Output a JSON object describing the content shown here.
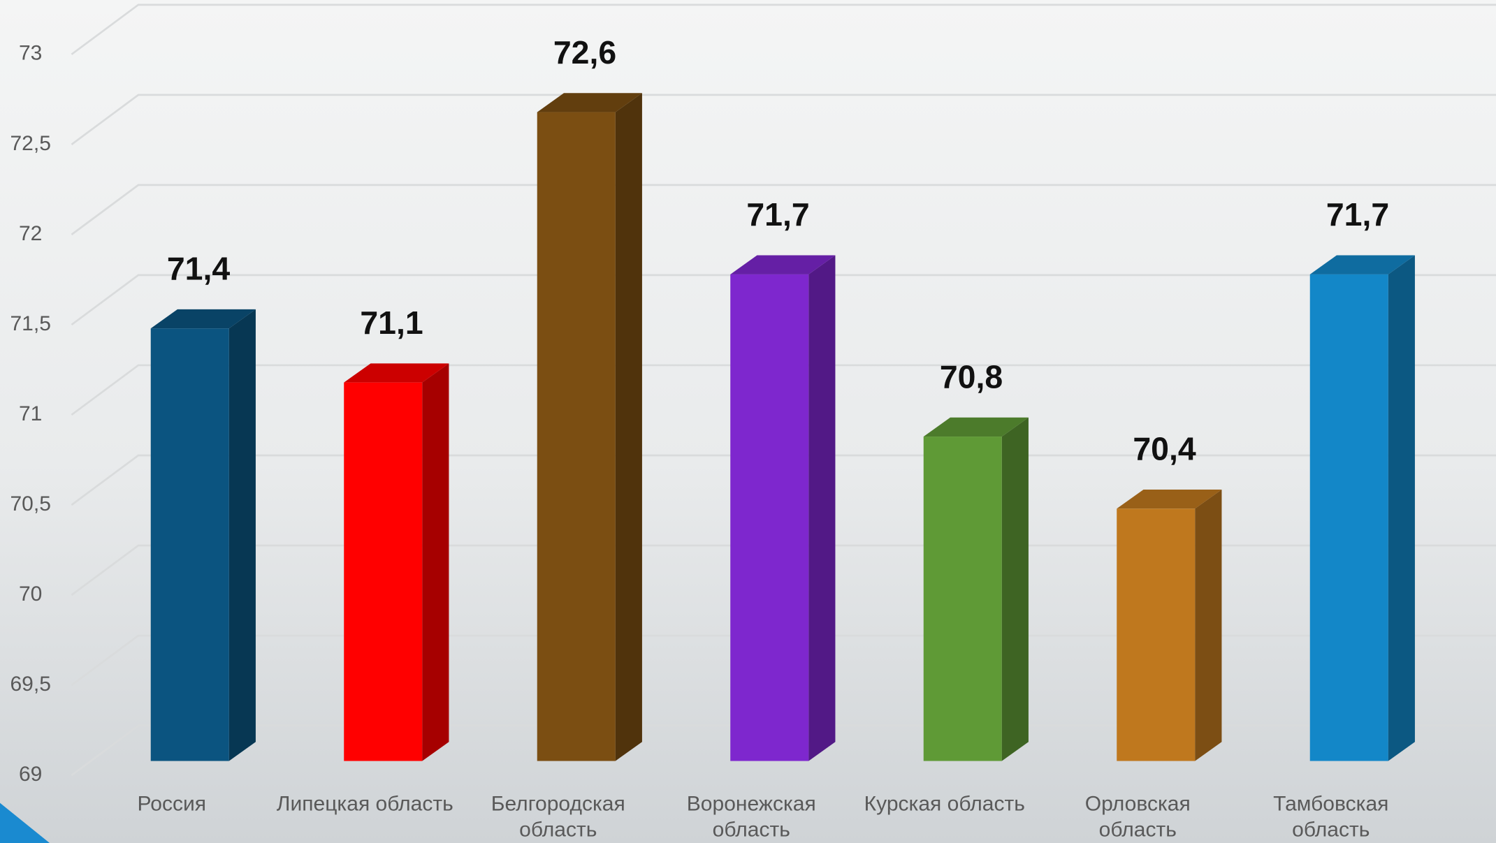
{
  "chart_data": {
    "type": "bar3d",
    "categories": [
      "Россия",
      "Липецкая область",
      "Белгородская область",
      "Воронежская область",
      "Курская область",
      "Орловская область",
      "Тамбовская область"
    ],
    "values": [
      71.4,
      71.1,
      72.6,
      71.7,
      70.8,
      70.4,
      71.7
    ],
    "value_labels": [
      "71,4",
      "71,1",
      "72,6",
      "71,7",
      "70,8",
      "70,4",
      "71,7"
    ],
    "colors": [
      "#0b5480",
      "#ff0000",
      "#7b4e12",
      "#7e27ce",
      "#5f9a36",
      "#bf781e",
      "#1387c8"
    ],
    "ylim": [
      69,
      73
    ],
    "yticks": [
      69,
      {
        "value": 69.5,
        "label": "69,5"
      },
      70,
      {
        "value": 70.5,
        "label": "70,5"
      },
      71,
      {
        "value": 71.5,
        "label": "71,5"
      },
      72,
      {
        "value": 72.5,
        "label": "72,5"
      },
      73
    ],
    "grid": true
  }
}
